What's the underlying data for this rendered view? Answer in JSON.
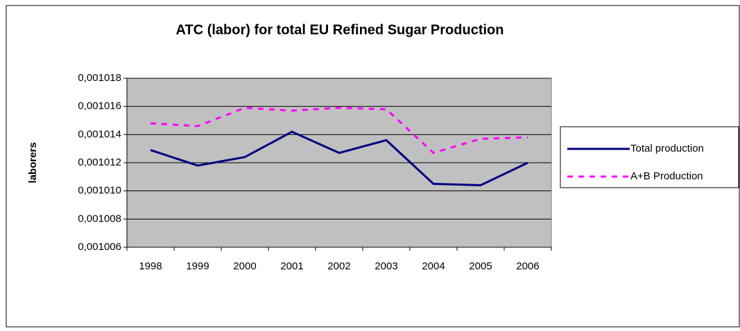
{
  "chart_data": {
    "type": "line",
    "title": "ATC (labor) for total EU Refined Sugar Production",
    "y_label": "laborers",
    "categories": [
      "1998",
      "1999",
      "2000",
      "2001",
      "2002",
      "2003",
      "2004",
      "2005",
      "2006"
    ],
    "series": [
      {
        "name": "Total production",
        "color": "#000080",
        "dash": false,
        "values": [
          0.0010129,
          0.0010118,
          0.0010124,
          0.0010142,
          0.0010127,
          0.0010136,
          0.0010105,
          0.0010104,
          0.001012
        ]
      },
      {
        "name": "A+B Production",
        "color": "#ff00ff",
        "dash": true,
        "values": [
          0.0010148,
          0.0010146,
          0.0010159,
          0.0010157,
          0.0010159,
          0.0010158,
          0.0010127,
          0.0010137,
          0.0010138
        ]
      }
    ],
    "ylim": [
      0.001006,
      0.001018
    ],
    "yticks": [
      {
        "value": 0.001006,
        "label": "0,001006"
      },
      {
        "value": 0.001008,
        "label": "0,001008"
      },
      {
        "value": 0.00101,
        "label": "0,001010"
      },
      {
        "value": 0.001012,
        "label": "0,001012"
      },
      {
        "value": 0.001014,
        "label": "0,001014"
      },
      {
        "value": 0.001016,
        "label": "0,001016"
      },
      {
        "value": 0.001018,
        "label": "0,001018"
      }
    ],
    "grid": true,
    "plot_background": "#c0c0c0",
    "legend": "right"
  }
}
